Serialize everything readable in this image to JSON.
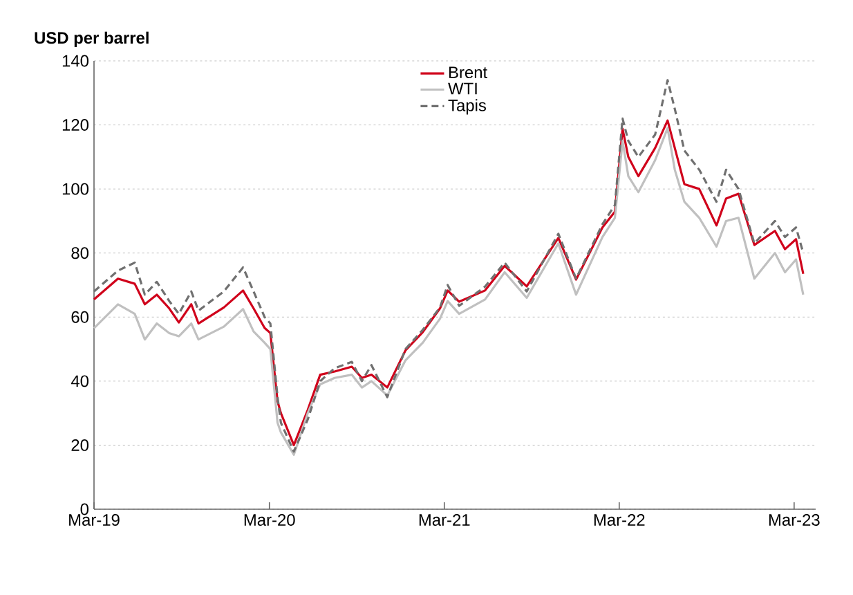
{
  "chart_data": {
    "type": "line",
    "ylabel": "USD per barrel",
    "x": [
      "2019-03-01",
      "2019-04-20",
      "2019-05-25",
      "2019-06-15",
      "2019-07-10",
      "2019-08-05",
      "2019-08-25",
      "2019-09-20",
      "2019-10-05",
      "2019-11-27",
      "2020-01-06",
      "2020-01-28",
      "2020-02-20",
      "2020-03-03",
      "2020-03-18",
      "2020-03-25",
      "2020-04-21",
      "2020-05-20",
      "2020-06-15",
      "2020-07-15",
      "2020-08-20",
      "2020-09-10",
      "2020-09-30",
      "2020-11-02",
      "2020-12-10",
      "2021-01-15",
      "2021-02-20",
      "2021-03-08",
      "2021-04-01",
      "2021-05-25",
      "2021-07-05",
      "2021-08-20",
      "2021-10-25",
      "2021-12-01",
      "2022-01-25",
      "2022-02-20",
      "2022-03-08",
      "2022-03-20",
      "2022-04-10",
      "2022-05-15",
      "2022-06-10",
      "2022-06-25",
      "2022-07-15",
      "2022-08-15",
      "2022-09-20",
      "2022-10-10",
      "2022-11-05",
      "2022-12-08",
      "2023-01-20",
      "2023-02-10",
      "2023-03-05",
      "2023-03-20"
    ],
    "series": [
      {
        "name": "Brent",
        "color": "#d0021b",
        "line_style": "solid",
        "values": [
          65.5,
          72,
          70.4,
          64,
          67,
          62.7,
          58.3,
          64,
          58,
          63,
          68.3,
          62.7,
          56.6,
          55,
          33.7,
          30,
          20,
          31,
          42,
          43,
          44.5,
          41,
          42,
          38,
          49.6,
          55.3,
          62.7,
          68.3,
          64.8,
          68.3,
          76,
          69.6,
          84.7,
          71.7,
          88,
          92.9,
          118.8,
          110,
          104,
          112.8,
          121.4,
          112.8,
          101.5,
          100,
          88.6,
          97,
          98.5,
          82.5,
          86.9,
          81.2,
          84.3,
          73.5
        ]
      },
      {
        "name": "WTI",
        "color": "#c0c0c0",
        "line_style": "solid",
        "values": [
          56.5,
          64,
          61,
          53,
          58,
          55,
          54,
          58,
          53,
          57,
          62.5,
          55.5,
          52,
          50,
          27,
          24,
          17,
          30,
          39,
          41,
          42,
          38,
          40,
          35.5,
          46.5,
          52,
          59.5,
          65,
          61,
          65.5,
          74,
          66,
          83,
          67,
          85,
          91,
          115,
          104,
          99,
          109,
          119,
          106,
          96,
          91,
          82,
          90,
          91,
          72,
          80,
          74,
          78,
          67
        ]
      },
      {
        "name": "Tapis",
        "color": "#707070",
        "line_style": "dashed",
        "values": [
          68,
          74.5,
          77,
          67,
          71,
          65,
          61,
          68,
          62,
          68,
          75.5,
          68,
          60,
          58,
          35,
          27,
          18,
          28,
          40,
          44,
          46,
          40,
          45,
          35,
          50,
          56,
          63,
          70,
          63.5,
          69.5,
          77,
          68,
          86,
          72,
          89,
          95,
          122,
          115,
          110,
          117,
          134,
          125,
          112,
          106,
          96,
          106,
          100,
          83,
          90,
          85,
          88,
          80
        ]
      }
    ],
    "xlim": [
      "2019-03-01",
      "2023-04-15"
    ],
    "xticks": [
      {
        "value": "2019-03-01",
        "label": "Mar-19"
      },
      {
        "value": "2020-03-01",
        "label": "Mar-20"
      },
      {
        "value": "2021-03-01",
        "label": "Mar-21"
      },
      {
        "value": "2022-03-01",
        "label": "Mar-22"
      },
      {
        "value": "2023-03-01",
        "label": "Mar-23"
      }
    ],
    "ylim": [
      0,
      140
    ],
    "yticks": [
      0,
      20,
      40,
      60,
      80,
      100,
      120,
      140
    ],
    "grid": "y",
    "legend": "top"
  }
}
